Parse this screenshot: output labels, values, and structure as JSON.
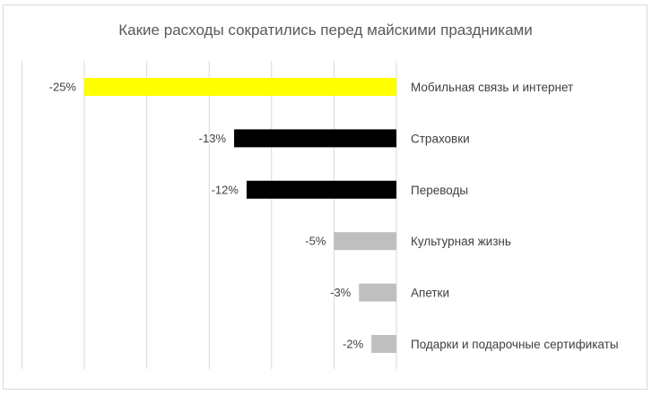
{
  "chart_data": {
    "type": "bar",
    "orientation": "horizontal",
    "title": "Какие расходы сократились перед майскими праздниками",
    "categories": [
      "Мобильная связь и интернет",
      "Страховки",
      "Переводы",
      "Культурная жизнь",
      "Апетки",
      "Подарки и подарочные сертификаты"
    ],
    "values": [
      -25,
      -13,
      -12,
      -5,
      -3,
      -2
    ],
    "data_labels": [
      "-25%",
      "-13%",
      "-12%",
      "-5%",
      "-3%",
      "-2%"
    ],
    "colors": [
      "#ffff00",
      "#000000",
      "#000000",
      "#bfbfbf",
      "#bfbfbf",
      "#bfbfbf"
    ],
    "xlim": [
      -30,
      0
    ],
    "grid_step": 5,
    "grid": true,
    "xlabel": "",
    "ylabel": "",
    "legend": "none"
  }
}
